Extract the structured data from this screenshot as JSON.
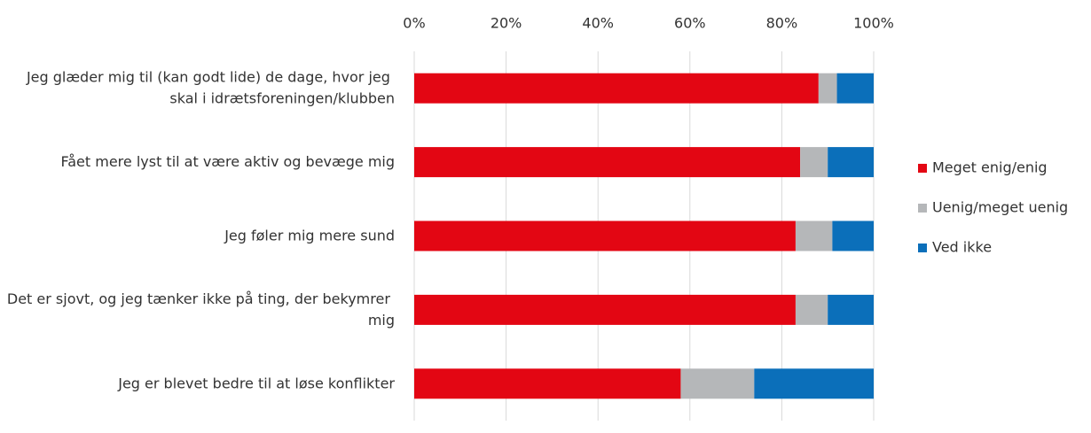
{
  "chart_data": {
    "type": "stacked-bar-horizontal",
    "categories": [
      "Jeg glæder mig til (kan godt lide) de dage, hvor jeg skal i idrætsforeningen/klubben",
      "Fået mere lyst til at være aktiv og bevæge mig",
      "Jeg føler mig mere sund",
      "Det er sjovt, og jeg tænker ikke på ting, der bekymrer mig",
      "Jeg er blevet bedre til at løse konflikter"
    ],
    "series": [
      {
        "name": "Meget enig/enig",
        "color": "#e30613",
        "values": [
          88,
          84,
          83,
          83,
          58
        ]
      },
      {
        "name": "Uenig/meget uenig",
        "color": "#b5b7b9",
        "values": [
          4,
          6,
          8,
          7,
          16
        ]
      },
      {
        "name": "Ved ikke",
        "color": "#0b6fba",
        "values": [
          8,
          10,
          9,
          10,
          26
        ]
      }
    ],
    "xlim": [
      0,
      100
    ],
    "xticks": [
      {
        "value": 0,
        "label": "0%"
      },
      {
        "value": 20,
        "label": "20%"
      },
      {
        "value": 40,
        "label": "40%"
      },
      {
        "value": 60,
        "label": "60%"
      },
      {
        "value": 80,
        "label": "80%"
      },
      {
        "value": 100,
        "label": "100%"
      }
    ],
    "grid": true,
    "legend": "right"
  }
}
